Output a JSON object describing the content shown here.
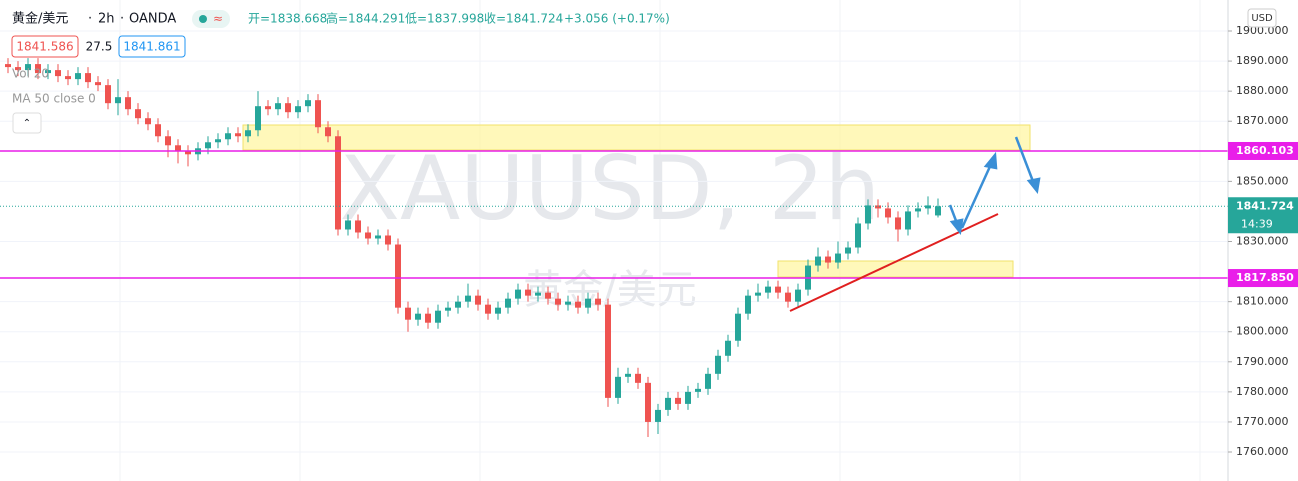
{
  "chart_data": {
    "type": "candlestick",
    "symbol": "黄金/美元",
    "interval": "2h",
    "source": "OANDA",
    "ohlc_text": [
      "开=1838.668",
      "高=1844.291",
      "低=1837.998",
      "收=1841.724"
    ],
    "change_text": "+3.056 (+0.17%)",
    "bid": "1841.586",
    "spread": "27.5",
    "ask": "1841.861",
    "indicators": [
      "Vol 20",
      "MA 50 close 0"
    ],
    "watermark": [
      "XAUUSD, 2h",
      "黄金/美元"
    ],
    "currency": "USD",
    "countdown": "14:39",
    "last_price": {
      "value": 1841.724,
      "label": "1841.724"
    },
    "price_lines": [
      {
        "value": 1860.103,
        "label": "1860.103",
        "color": "#e91ee9"
      },
      {
        "value": 1817.85,
        "label": "1817.850",
        "color": "#e91ee9"
      }
    ],
    "up_color": "#26a69a",
    "down_color": "#ef5350",
    "ylim": [
      1750.36,
      1910.31
    ],
    "yticks": [
      {
        "value": 1760,
        "label": "1760.000"
      },
      {
        "value": 1770,
        "label": "1770.000"
      },
      {
        "value": 1780,
        "label": "1780.000"
      },
      {
        "value": 1790,
        "label": "1790.000"
      },
      {
        "value": 1800,
        "label": "1800.000"
      },
      {
        "value": 1810,
        "label": "1810.000"
      },
      {
        "value": 1830,
        "label": "1830.000"
      },
      {
        "value": 1850,
        "label": "1850.000"
      },
      {
        "value": 1870,
        "label": "1870.000"
      },
      {
        "value": 1880,
        "label": "1880.000"
      },
      {
        "value": 1890,
        "label": "1890.000"
      },
      {
        "value": 1900,
        "label": "1900.000"
      }
    ],
    "grid": true,
    "open": [
      1889,
      1888,
      1887,
      1889,
      1886,
      1887,
      1885,
      1884,
      1886,
      1883,
      1882,
      1876,
      1878,
      1874,
      1871,
      1869,
      1865,
      1862,
      1860,
      1859,
      1861,
      1863,
      1864,
      1866,
      1865,
      1867,
      1875,
      1874,
      1876,
      1873,
      1875,
      1877,
      1868,
      1865,
      1834,
      1837,
      1833,
      1831,
      1832,
      1829,
      1808,
      1804,
      1806,
      1803,
      1807,
      1808,
      1810,
      1812,
      1809,
      1806,
      1808,
      1811,
      1814,
      1812,
      1813,
      1811,
      1809,
      1810,
      1808,
      1811,
      1809,
      1778,
      1785,
      1786,
      1783,
      1770,
      1774,
      1778,
      1776,
      1780,
      1781,
      1786,
      1792,
      1797,
      1806,
      1812,
      1813,
      1815,
      1813,
      1810,
      1814,
      1822,
      1825,
      1823,
      1826,
      1828,
      1836,
      1842,
      1841,
      1838,
      1834,
      1840,
      1841,
      1838.668
    ],
    "high": [
      1891,
      1890,
      1891,
      1891,
      1889,
      1889,
      1887,
      1888,
      1888,
      1885,
      1884,
      1884,
      1880,
      1876,
      1873,
      1871,
      1867,
      1864,
      1862,
      1863,
      1865,
      1866,
      1868,
      1868,
      1869,
      1880,
      1877,
      1878,
      1878,
      1877,
      1879,
      1879,
      1870,
      1867,
      1839,
      1839,
      1835,
      1834,
      1834,
      1831,
      1810,
      1808,
      1808,
      1809,
      1810,
      1812,
      1816,
      1814,
      1811,
      1810,
      1813,
      1816,
      1816,
      1815,
      1815,
      1813,
      1812,
      1812,
      1813,
      1813,
      1811,
      1788,
      1788,
      1788,
      1785,
      1776,
      1780,
      1780,
      1782,
      1783,
      1788,
      1794,
      1799,
      1808,
      1814,
      1816,
      1817,
      1817,
      1815,
      1816,
      1824,
      1828,
      1827,
      1830,
      1830,
      1838,
      1844,
      1844,
      1843,
      1840,
      1842,
      1843,
      1845,
      1844.291
    ],
    "low": [
      1886,
      1885,
      1885,
      1884,
      1884,
      1883,
      1882,
      1882,
      1881,
      1880,
      1874,
      1872,
      1872,
      1869,
      1867,
      1863,
      1858,
      1856,
      1855,
      1857,
      1859,
      1861,
      1862,
      1863,
      1863,
      1865,
      1872,
      1872,
      1871,
      1871,
      1873,
      1866,
      1863,
      1832,
      1832,
      1831,
      1829,
      1829,
      1827,
      1806,
      1800,
      1802,
      1801,
      1801,
      1805,
      1806,
      1808,
      1807,
      1804,
      1804,
      1806,
      1809,
      1810,
      1810,
      1809,
      1807,
      1807,
      1806,
      1806,
      1807,
      1775,
      1776,
      1783,
      1781,
      1765,
      1766,
      1772,
      1774,
      1774,
      1778,
      1779,
      1784,
      1790,
      1795,
      1804,
      1810,
      1811,
      1811,
      1808,
      1808,
      1812,
      1820,
      1821,
      1821,
      1824,
      1826,
      1834,
      1838,
      1836,
      1830,
      1832,
      1838,
      1839,
      1837.998
    ],
    "close": [
      1888,
      1887,
      1889,
      1886,
      1887,
      1885,
      1884,
      1886,
      1883,
      1882,
      1876,
      1878,
      1874,
      1871,
      1869,
      1865,
      1862,
      1860,
      1859,
      1861,
      1863,
      1864,
      1866,
      1865,
      1867,
      1875,
      1874,
      1876,
      1873,
      1875,
      1877,
      1868,
      1865,
      1834,
      1837,
      1833,
      1831,
      1832,
      1829,
      1808,
      1804,
      1806,
      1803,
      1807,
      1808,
      1810,
      1812,
      1809,
      1806,
      1808,
      1811,
      1814,
      1812,
      1813,
      1811,
      1809,
      1810,
      1808,
      1811,
      1809,
      1778,
      1785,
      1786,
      1783,
      1770,
      1774,
      1778,
      1776,
      1780,
      1781,
      1786,
      1792,
      1797,
      1806,
      1812,
      1813,
      1815,
      1813,
      1810,
      1814,
      1822,
      1825,
      1823,
      1826,
      1828,
      1836,
      1842,
      1841,
      1838,
      1834,
      1840,
      1841,
      1842,
      1841.724
    ]
  }
}
